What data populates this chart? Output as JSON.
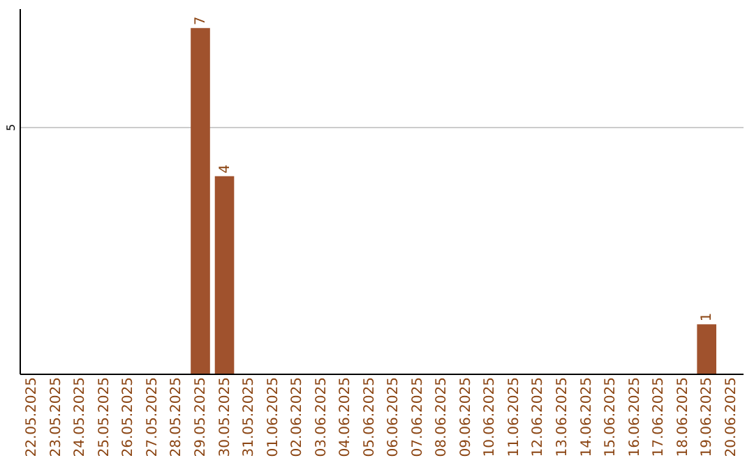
{
  "chart_data": {
    "type": "bar",
    "categories": [
      "22.05.2025",
      "23.05.2025",
      "24.05.2025",
      "25.05.2025",
      "26.05.2025",
      "27.05.2025",
      "28.05.2025",
      "29.05.2025",
      "30.05.2025",
      "31.05.2025",
      "01.06.2025",
      "02.06.2025",
      "03.06.2025",
      "04.06.2025",
      "05.06.2025",
      "06.06.2025",
      "07.06.2025",
      "08.06.2025",
      "09.06.2025",
      "10.06.2025",
      "11.06.2025",
      "12.06.2025",
      "13.06.2025",
      "14.06.2025",
      "15.06.2025",
      "16.06.2025",
      "17.06.2025",
      "18.06.2025",
      "19.06.2025",
      "20.06.2025"
    ],
    "values": [
      0,
      0,
      0,
      0,
      0,
      0,
      0,
      7,
      4,
      0,
      0,
      0,
      0,
      0,
      0,
      0,
      0,
      0,
      0,
      0,
      0,
      0,
      0,
      0,
      0,
      0,
      0,
      0,
      1,
      0
    ],
    "color": "#a0522d",
    "value_labels": [
      null,
      null,
      null,
      null,
      null,
      null,
      null,
      "7",
      "4",
      null,
      null,
      null,
      null,
      null,
      null,
      null,
      null,
      null,
      null,
      null,
      null,
      null,
      null,
      null,
      null,
      null,
      null,
      null,
      "1",
      null
    ],
    "ylim": [
      0,
      7.4
    ],
    "yticks": [
      5
    ],
    "grid": "y"
  }
}
